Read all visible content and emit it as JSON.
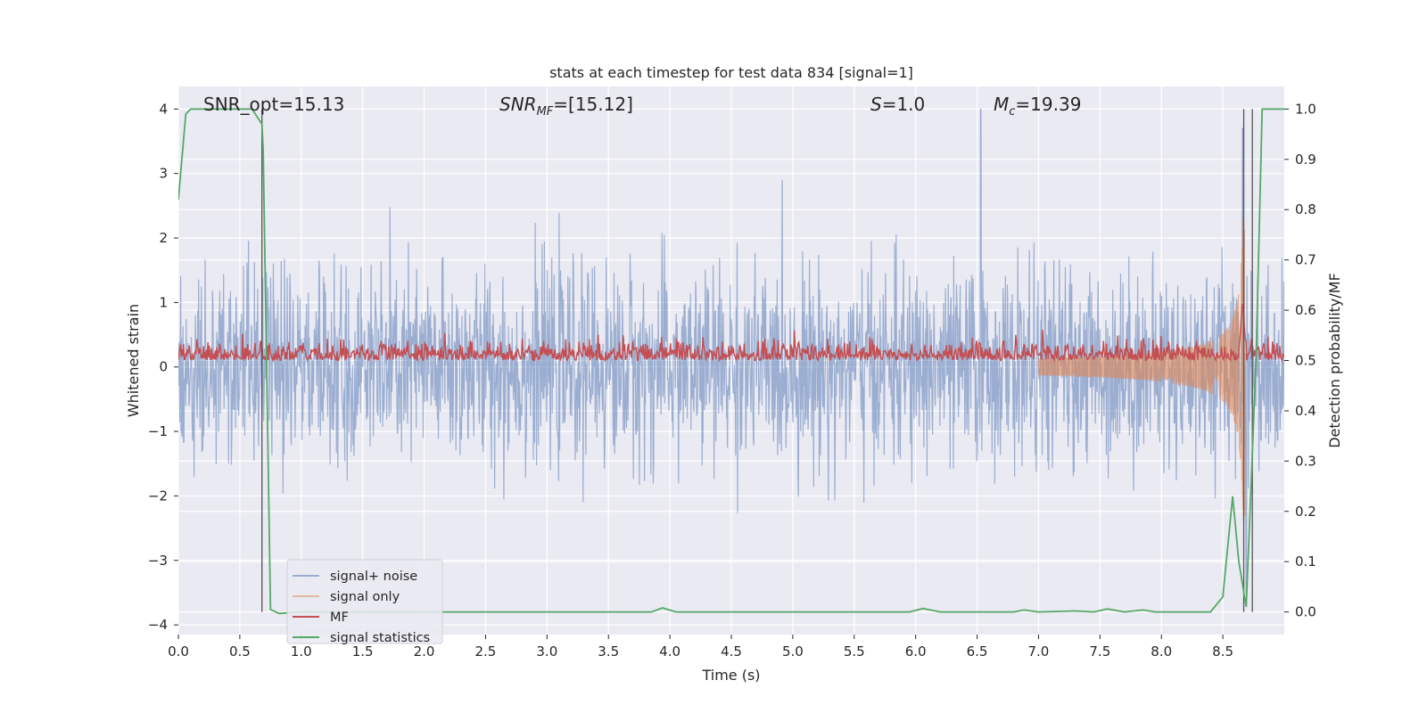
{
  "chart_data": {
    "type": "line",
    "title": "stats at each timestep for test data 834 [signal=1]",
    "xlabel": "Time (s)",
    "ylabel": "Whitened strain",
    "ylabel_right": "Detection probability/MF",
    "xlim": [
      0.0,
      9.0
    ],
    "ylim": [
      -4.15,
      4.35
    ],
    "ylim_right": [
      -0.045,
      1.045
    ],
    "grid": true,
    "legend_position": "lower-left",
    "x_ticks": [
      "0.0",
      "0.5",
      "1.0",
      "1.5",
      "2.0",
      "2.5",
      "3.0",
      "3.5",
      "4.0",
      "4.5",
      "5.0",
      "5.5",
      "6.0",
      "6.5",
      "7.0",
      "7.5",
      "8.0",
      "8.5"
    ],
    "y_ticks": [
      "−4",
      "−3",
      "−2",
      "−1",
      "0",
      "1",
      "2",
      "3",
      "4"
    ],
    "y_ticks_right": [
      "0.0",
      "0.1",
      "0.2",
      "0.3",
      "0.4",
      "0.5",
      "0.6",
      "0.7",
      "0.8",
      "0.9",
      "1.0"
    ],
    "annotations": {
      "snr_opt": "SNR_opt=15.13",
      "snr_mf_prefix": "SNR",
      "snr_mf_sub": "MF",
      "snr_mf_value": "=[15.12]",
      "s_symbol": "S",
      "s_value": "=1.0",
      "mc_symbol": "M",
      "mc_sub": "c",
      "mc_value": "=19.39"
    },
    "vertical_lines_x": [
      0.68,
      8.67,
      8.74
    ],
    "series": [
      {
        "name": "signal+ noise",
        "axis": "left",
        "color": "#4c72b0",
        "description_envelope": "random noise approx within ±1.9 with occasional spikes to about ±2.9; peak 4.0 near t=6.53"
      },
      {
        "name": "signal only",
        "axis": "left",
        "color": "#dd8452",
        "chirp": {
          "start_time": 7.0,
          "merger_time": 8.68,
          "peak_amplitude": 2.4
        }
      },
      {
        "name": "MF",
        "axis": "right",
        "color": "#c44e52",
        "baseline": 0.5,
        "noise": 0.02,
        "peak": {
          "x": 8.66,
          "y": 0.62
        }
      },
      {
        "name": "signal statistics",
        "axis": "right",
        "color": "#55a868",
        "x": [
          0.0,
          0.06,
          0.1,
          0.2,
          0.3,
          0.4,
          0.5,
          0.6,
          0.68,
          0.69,
          0.75,
          0.82,
          1.0,
          2.0,
          3.0,
          3.85,
          3.94,
          4.05,
          5.0,
          5.95,
          6.06,
          6.2,
          6.8,
          6.88,
          7.0,
          7.3,
          7.45,
          7.56,
          7.7,
          7.85,
          7.95,
          8.05,
          8.2,
          8.4,
          8.5,
          8.58,
          8.63,
          8.69,
          8.77,
          8.82,
          8.88,
          9.0
        ],
        "y": [
          0.82,
          0.99,
          1.0,
          1.0,
          1.0,
          1.0,
          1.0,
          1.0,
          0.97,
          0.92,
          0.005,
          -0.003,
          0.0,
          0.0,
          0.0,
          0.0,
          0.008,
          0.0,
          0.0,
          0.0,
          0.007,
          0.0,
          0.0,
          0.004,
          0.0,
          0.002,
          0.0,
          0.006,
          0.0,
          0.004,
          0.0,
          0.0,
          0.0,
          0.0,
          0.03,
          0.23,
          0.1,
          0.01,
          0.5,
          1.0,
          1.0,
          1.0
        ]
      }
    ]
  }
}
